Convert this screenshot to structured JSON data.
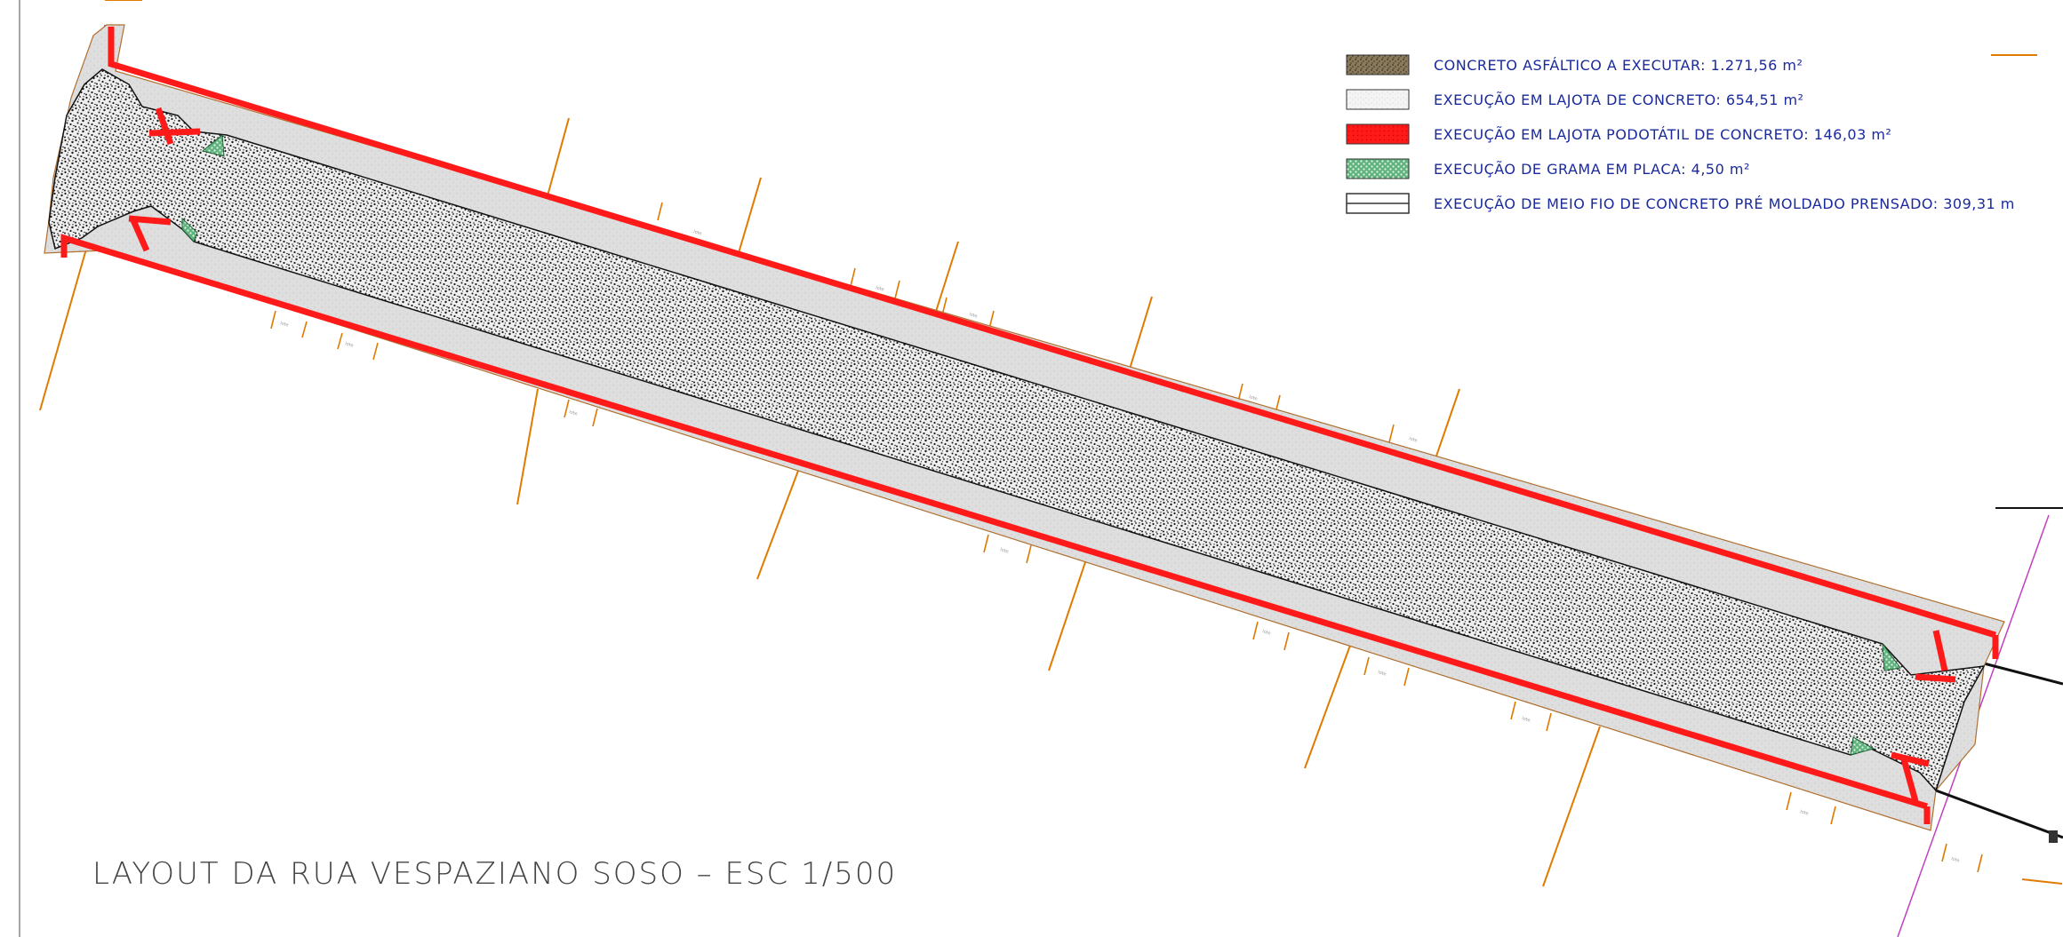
{
  "title": "LAYOUT DA RUA VESPAZIANO SOSO –  ESC 1/500",
  "legend": [
    {
      "key": "asphalt",
      "label": "CONCRETO ASFÁLTICO A EXECUTAR: 1.271,56 m²"
    },
    {
      "key": "concrete_tile",
      "label": "EXECUÇÃO EM LAJOTA DE CONCRETO: 654,51 m²"
    },
    {
      "key": "tactile_tile",
      "label": "EXECUÇÃO EM LAJOTA PODOTÁTIL DE CONCRETO: 146,03 m²"
    },
    {
      "key": "grass",
      "label": "EXECUÇÃO DE GRAMA EM PLACA: 4,50 m²"
    },
    {
      "key": "curb",
      "label": "EXECUÇÃO DE MEIO FIO DE CONCRETO PRÉ MOLDADO PRENSADO: 309,31 m"
    }
  ],
  "colors": {
    "asphalt_dark": "#1a1a1a",
    "asphalt_light": "#f2f2f2",
    "sidewalk": "#dcdcdc",
    "tactile": "#ff0000",
    "grass": "#2e8b57",
    "lot_lines": "#e07b00",
    "legend_text": "#1a2a9c",
    "boundary": "#c040c0"
  }
}
